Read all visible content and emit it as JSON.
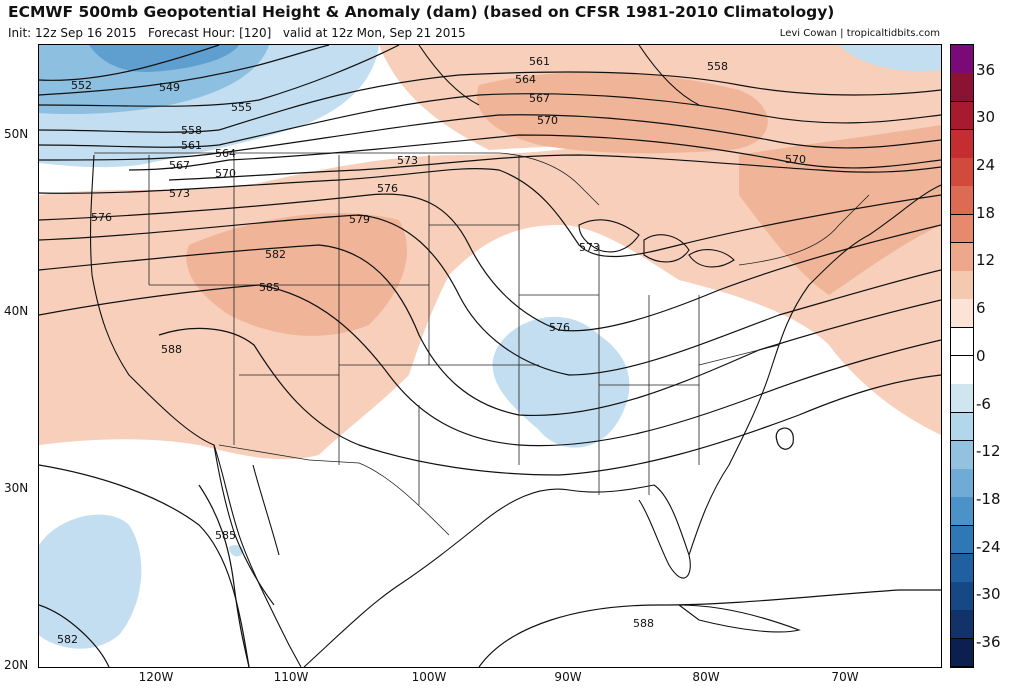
{
  "header": {
    "title": "ECMWF 500mb Geopotential Height & Anomaly (dam) (based on CFSR 1981-2010 Climatology)",
    "init_text": "Init: 12z Sep 16 2015",
    "forecast_text": "Forecast Hour: [120]",
    "valid_text": "valid at 12z Mon, Sep 21 2015",
    "credit": "Levi Cowan | tropicaltidbits.com"
  },
  "map": {
    "lat_labels": [
      "50N",
      "40N",
      "30N",
      "20N"
    ],
    "lon_labels": [
      "120W",
      "110W",
      "100W",
      "90W",
      "80W",
      "70W"
    ],
    "contour_labels": [
      "552",
      "549",
      "555",
      "558",
      "561",
      "564",
      "567",
      "570",
      "573",
      "576",
      "579",
      "582",
      "585",
      "588",
      "561",
      "564",
      "567",
      "570",
      "558",
      "570",
      "573",
      "576",
      "573",
      "576",
      "585",
      "582",
      "588"
    ]
  },
  "colorbar": {
    "tick_labels": [
      "36",
      "30",
      "24",
      "18",
      "12",
      "6",
      "0",
      "-6",
      "-12",
      "-18",
      "-24",
      "-30",
      "-36"
    ],
    "colors": [
      "#7a0a78",
      "#8b1232",
      "#a81a2e",
      "#c42e30",
      "#d24a3c",
      "#dd6a52",
      "#e58a6c",
      "#eda88c",
      "#f5c8b0",
      "#fbe3d6",
      "#ffffff",
      "#ffffff",
      "#cfe6f1",
      "#b2d6ea",
      "#93c2e0",
      "#6fabd4",
      "#4a92c7",
      "#2f78b6",
      "#205fa0",
      "#174886",
      "#12336a",
      "#0c2050"
    ]
  }
}
